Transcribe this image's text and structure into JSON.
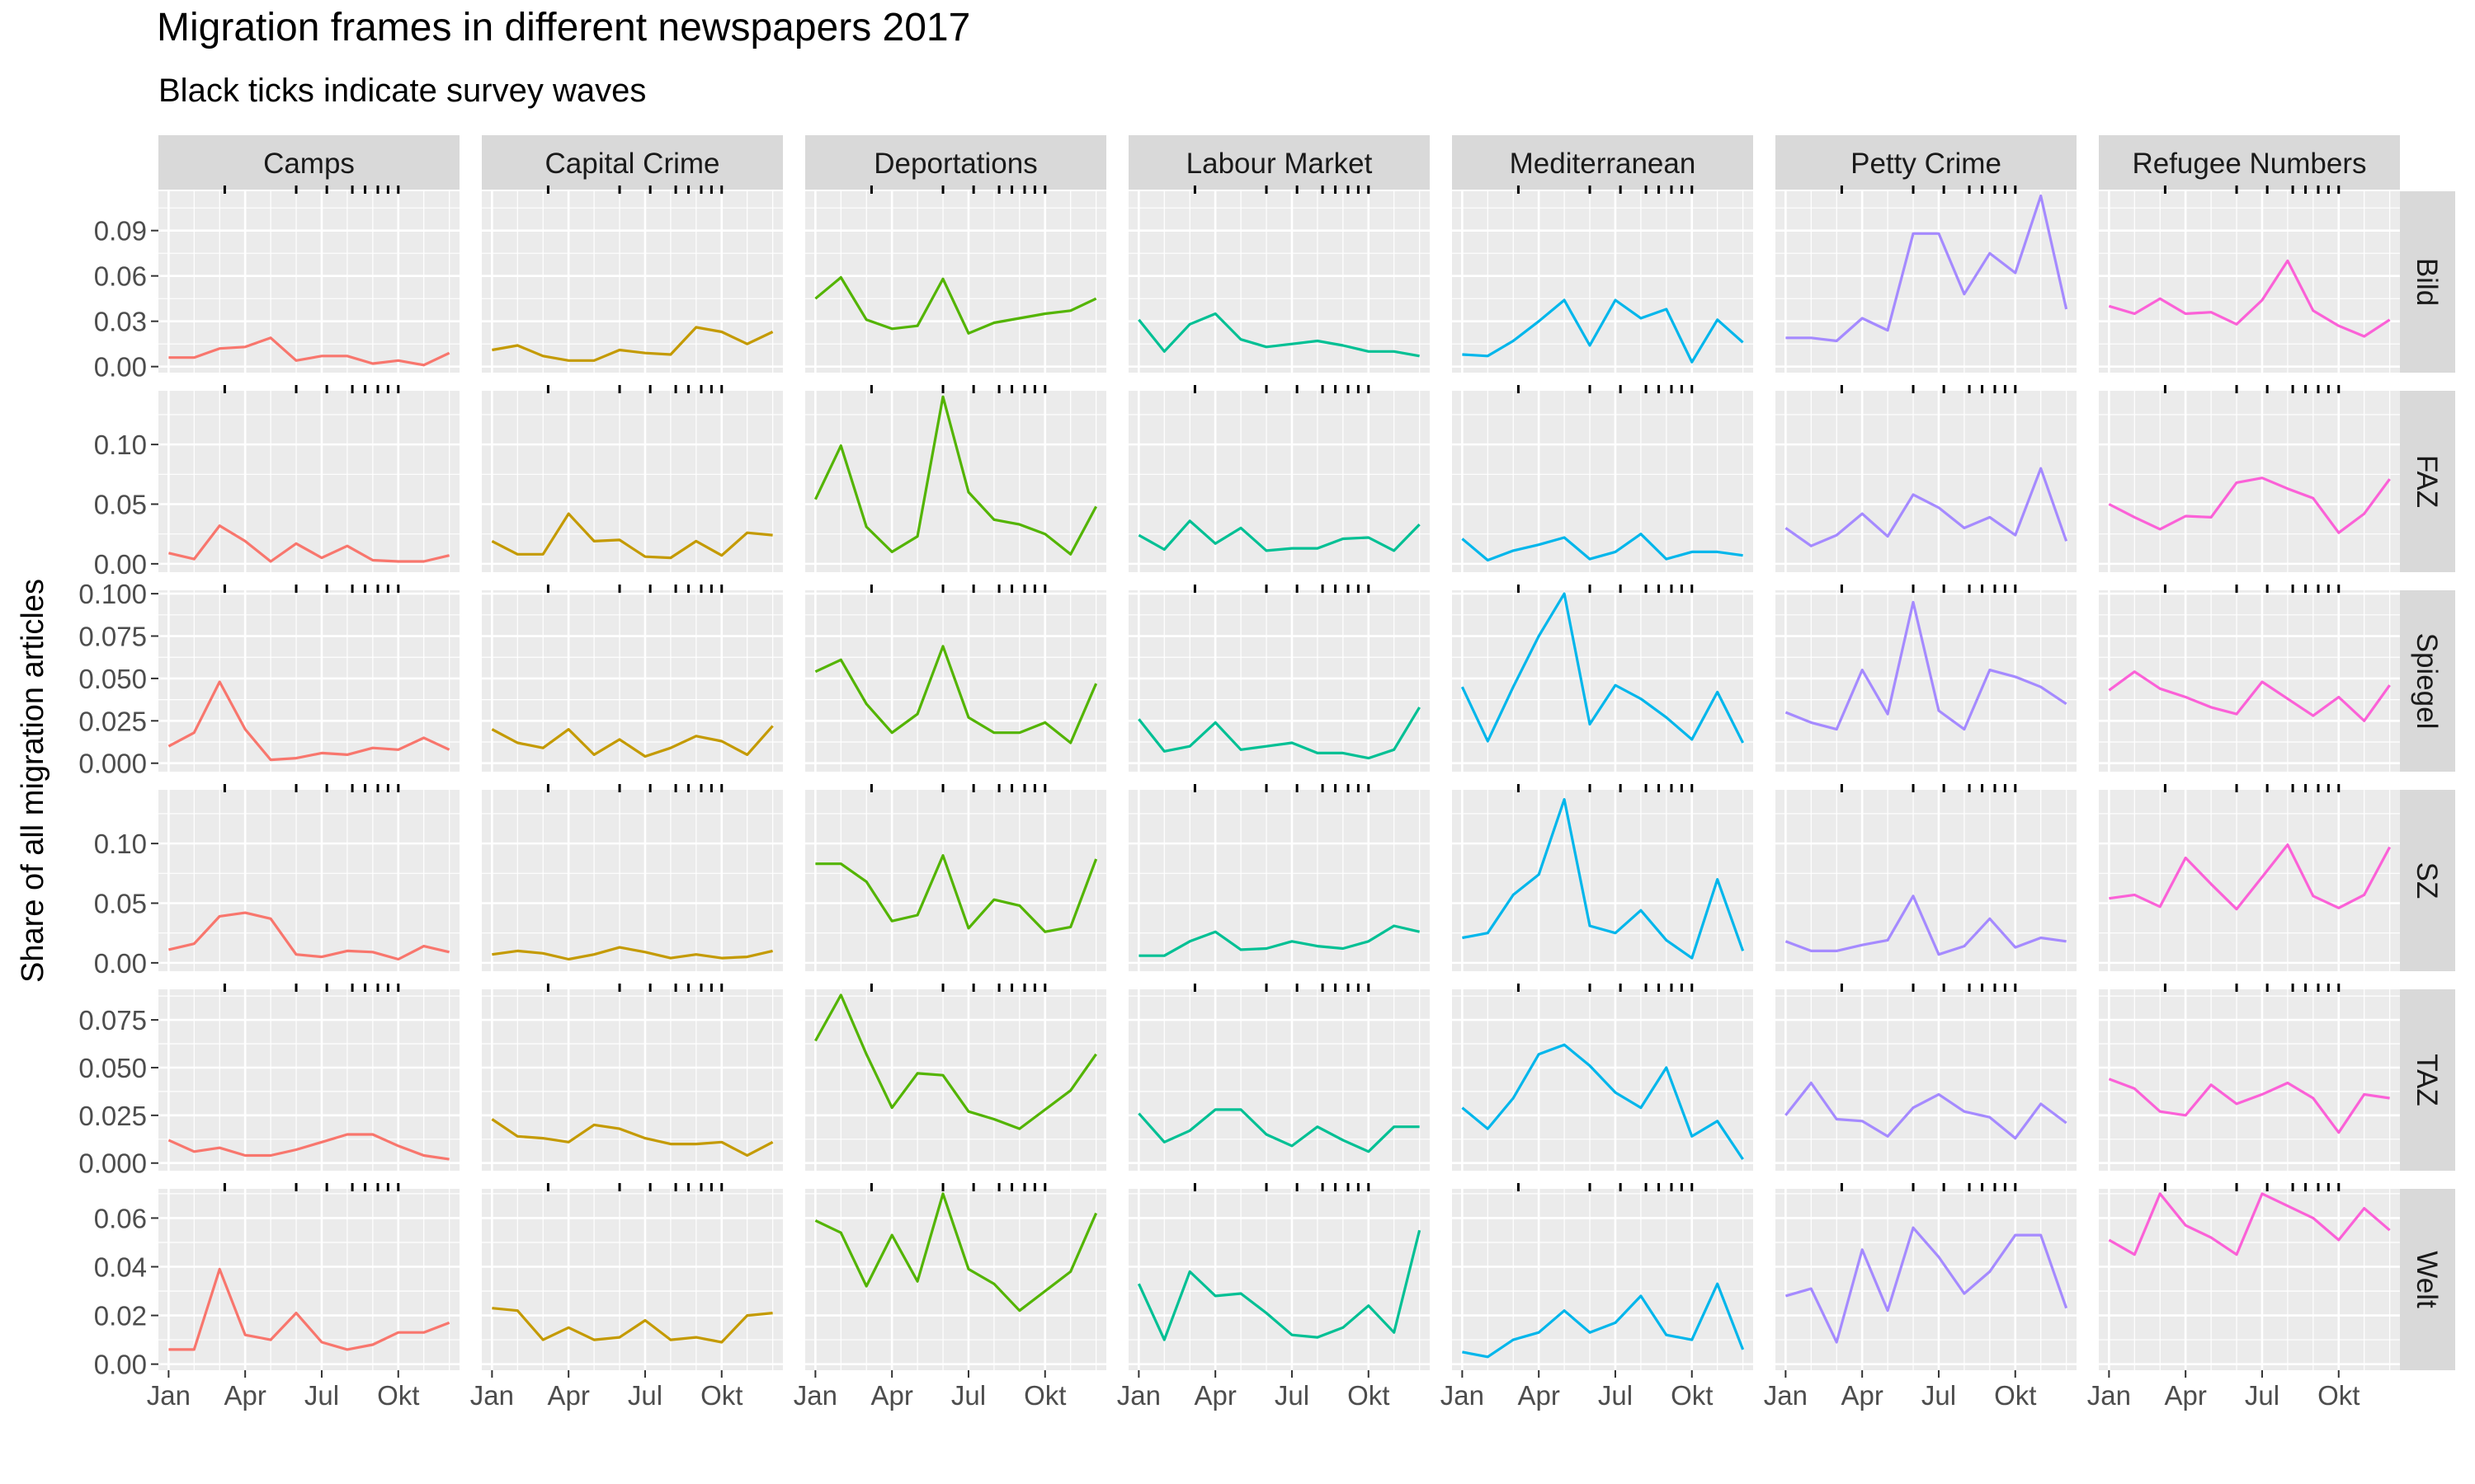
{
  "title": "Migration frames in different newspapers 2017",
  "subtitle": "Black ticks indicate survey waves",
  "chart_data": {
    "type": "line",
    "facet_columns": [
      "Camps",
      "Capital Crime",
      "Deportations",
      "Labour Market",
      "Mediterranean",
      "Petty Crime",
      "Refugee Numbers"
    ],
    "facet_rows": [
      "Bild",
      "FAZ",
      "Spiegel",
      "SZ",
      "TAZ",
      "Welt"
    ],
    "ylabel": "Share of all migration articles",
    "xlabel": "",
    "x_months": [
      1,
      2,
      3,
      4,
      5,
      6,
      7,
      8,
      9,
      10,
      11,
      12
    ],
    "x_ticks": [
      {
        "month": 1,
        "label": "Jan"
      },
      {
        "month": 4,
        "label": "Apr"
      },
      {
        "month": 7,
        "label": "Jul"
      },
      {
        "month": 10,
        "label": "Okt"
      }
    ],
    "x_range": [
      0.6,
      12.4
    ],
    "survey_wave_months": [
      3.2,
      6.0,
      7.2,
      8.2,
      8.7,
      9.2,
      9.6,
      10.0
    ],
    "colors": {
      "Camps": "#F8766D",
      "Capital Crime": "#C49A00",
      "Deportations": "#53B400",
      "Labour Market": "#00C094",
      "Mediterranean": "#00B6EB",
      "Petty Crime": "#A58AFF",
      "Refugee Numbers": "#FB61D7"
    },
    "rows": [
      {
        "name": "Bild",
        "ylim": [
          -0.004,
          0.116
        ],
        "yticks": [
          0,
          0.03,
          0.06,
          0.09
        ],
        "ytick_labels": [
          "0.00",
          "0.03",
          "0.06",
          "0.09"
        ],
        "series": {
          "Camps": [
            0.006,
            0.006,
            0.012,
            0.013,
            0.019,
            0.004,
            0.007,
            0.007,
            0.002,
            0.004,
            0.001,
            0.009
          ],
          "Capital Crime": [
            0.011,
            0.014,
            0.007,
            0.004,
            0.004,
            0.011,
            0.009,
            0.008,
            0.026,
            0.023,
            0.015,
            0.023
          ],
          "Deportations": [
            0.045,
            0.059,
            0.031,
            0.025,
            0.027,
            0.058,
            0.022,
            0.029,
            0.032,
            0.035,
            0.037,
            0.045
          ],
          "Labour Market": [
            0.031,
            0.01,
            0.028,
            0.035,
            0.018,
            0.013,
            0.015,
            0.017,
            0.014,
            0.01,
            0.01,
            0.007
          ],
          "Mediterranean": [
            0.008,
            0.007,
            0.017,
            0.03,
            0.044,
            0.014,
            0.044,
            0.032,
            0.038,
            0.003,
            0.031,
            0.016
          ],
          "Petty Crime": [
            0.019,
            0.019,
            0.017,
            0.032,
            0.024,
            0.088,
            0.088,
            0.048,
            0.075,
            0.062,
            0.113,
            0.038
          ],
          "Refugee Numbers": [
            0.04,
            0.035,
            0.045,
            0.035,
            0.036,
            0.028,
            0.044,
            0.07,
            0.037,
            0.027,
            0.02,
            0.031
          ]
        }
      },
      {
        "name": "FAZ",
        "ylim": [
          -0.007,
          0.145
        ],
        "yticks": [
          0,
          0.05,
          0.1
        ],
        "ytick_labels": [
          "0.00",
          "0.05",
          "0.10"
        ],
        "series": {
          "Camps": [
            0.009,
            0.004,
            0.032,
            0.019,
            0.002,
            0.017,
            0.005,
            0.015,
            0.003,
            0.002,
            0.002,
            0.007
          ],
          "Capital Crime": [
            0.019,
            0.008,
            0.008,
            0.042,
            0.019,
            0.02,
            0.006,
            0.005,
            0.019,
            0.007,
            0.026,
            0.024
          ],
          "Deportations": [
            0.054,
            0.099,
            0.031,
            0.01,
            0.023,
            0.14,
            0.06,
            0.037,
            0.033,
            0.025,
            0.008,
            0.048
          ],
          "Labour Market": [
            0.024,
            0.012,
            0.036,
            0.017,
            0.03,
            0.011,
            0.013,
            0.013,
            0.021,
            0.022,
            0.011,
            0.033
          ],
          "Mediterranean": [
            0.021,
            0.003,
            0.011,
            0.016,
            0.022,
            0.004,
            0.01,
            0.025,
            0.004,
            0.01,
            0.01,
            0.007
          ],
          "Petty Crime": [
            0.03,
            0.015,
            0.024,
            0.042,
            0.023,
            0.058,
            0.047,
            0.03,
            0.039,
            0.024,
            0.08,
            0.019
          ],
          "Refugee Numbers": [
            0.05,
            0.039,
            0.029,
            0.04,
            0.039,
            0.068,
            0.072,
            0.063,
            0.055,
            0.026,
            0.042,
            0.071
          ]
        }
      },
      {
        "name": "Spiegel",
        "ylim": [
          -0.005,
          0.102
        ],
        "yticks": [
          0,
          0.025,
          0.05,
          0.075,
          0.1
        ],
        "ytick_labels": [
          "0.000",
          "0.025",
          "0.050",
          "0.075",
          "0.100"
        ],
        "series": {
          "Camps": [
            0.01,
            0.018,
            0.048,
            0.02,
            0.002,
            0.003,
            0.006,
            0.005,
            0.009,
            0.008,
            0.015,
            0.008
          ],
          "Capital Crime": [
            0.02,
            0.012,
            0.009,
            0.02,
            0.005,
            0.014,
            0.004,
            0.009,
            0.016,
            0.013,
            0.005,
            0.022
          ],
          "Deportations": [
            0.054,
            0.061,
            0.035,
            0.018,
            0.029,
            0.069,
            0.027,
            0.018,
            0.018,
            0.024,
            0.012,
            0.047
          ],
          "Labour Market": [
            0.026,
            0.007,
            0.01,
            0.024,
            0.008,
            0.01,
            0.012,
            0.006,
            0.006,
            0.003,
            0.008,
            0.033
          ],
          "Mediterranean": [
            0.045,
            0.013,
            0.045,
            0.075,
            0.1,
            0.023,
            0.046,
            0.038,
            0.027,
            0.014,
            0.042,
            0.012
          ],
          "Petty Crime": [
            0.03,
            0.024,
            0.02,
            0.055,
            0.029,
            0.095,
            0.031,
            0.02,
            0.055,
            0.051,
            0.045,
            0.035
          ],
          "Refugee Numbers": [
            0.043,
            0.054,
            0.044,
            0.039,
            0.033,
            0.029,
            0.048,
            0.038,
            0.028,
            0.039,
            0.025,
            0.046
          ]
        }
      },
      {
        "name": "SZ",
        "ylim": [
          -0.007,
          0.145
        ],
        "yticks": [
          0,
          0.05,
          0.1
        ],
        "ytick_labels": [
          "0.00",
          "0.05",
          "0.10"
        ],
        "series": {
          "Camps": [
            0.011,
            0.016,
            0.039,
            0.042,
            0.037,
            0.007,
            0.005,
            0.01,
            0.009,
            0.003,
            0.014,
            0.009
          ],
          "Capital Crime": [
            0.007,
            0.01,
            0.008,
            0.003,
            0.007,
            0.013,
            0.009,
            0.004,
            0.007,
            0.004,
            0.005,
            0.01
          ],
          "Deportations": [
            0.083,
            0.083,
            0.068,
            0.035,
            0.04,
            0.09,
            0.029,
            0.053,
            0.048,
            0.026,
            0.03,
            0.087
          ],
          "Labour Market": [
            0.006,
            0.006,
            0.018,
            0.026,
            0.011,
            0.012,
            0.018,
            0.014,
            0.012,
            0.018,
            0.031,
            0.026
          ],
          "Mediterranean": [
            0.021,
            0.025,
            0.057,
            0.074,
            0.137,
            0.031,
            0.025,
            0.044,
            0.019,
            0.004,
            0.07,
            0.01
          ],
          "Petty Crime": [
            0.018,
            0.01,
            0.01,
            0.015,
            0.019,
            0.056,
            0.007,
            0.014,
            0.037,
            0.013,
            0.021,
            0.018
          ],
          "Refugee Numbers": [
            0.054,
            0.057,
            0.047,
            0.088,
            0.066,
            0.045,
            0.072,
            0.099,
            0.056,
            0.046,
            0.057,
            0.097
          ]
        }
      },
      {
        "name": "TAZ",
        "ylim": [
          -0.004,
          0.091
        ],
        "yticks": [
          0,
          0.025,
          0.05,
          0.075
        ],
        "ytick_labels": [
          "0.000",
          "0.025",
          "0.050",
          "0.075"
        ],
        "series": {
          "Camps": [
            0.012,
            0.006,
            0.008,
            0.004,
            0.004,
            0.007,
            0.011,
            0.015,
            0.015,
            0.009,
            0.004,
            0.002
          ],
          "Capital Crime": [
            0.023,
            0.014,
            0.013,
            0.011,
            0.02,
            0.018,
            0.013,
            0.01,
            0.01,
            0.011,
            0.004,
            0.011
          ],
          "Deportations": [
            0.064,
            0.088,
            0.057,
            0.029,
            0.047,
            0.046,
            0.027,
            0.023,
            0.018,
            0.028,
            0.038,
            0.057
          ],
          "Labour Market": [
            0.026,
            0.011,
            0.017,
            0.028,
            0.028,
            0.015,
            0.009,
            0.019,
            0.012,
            0.006,
            0.019,
            0.019
          ],
          "Mediterranean": [
            0.029,
            0.018,
            0.034,
            0.057,
            0.062,
            0.051,
            0.037,
            0.029,
            0.05,
            0.014,
            0.022,
            0.002
          ],
          "Petty Crime": [
            0.025,
            0.042,
            0.023,
            0.022,
            0.014,
            0.029,
            0.036,
            0.027,
            0.024,
            0.013,
            0.031,
            0.021
          ],
          "Refugee Numbers": [
            0.044,
            0.039,
            0.027,
            0.025,
            0.041,
            0.031,
            0.036,
            0.042,
            0.034,
            0.016,
            0.036,
            0.034
          ]
        }
      },
      {
        "name": "Welt",
        "ylim": [
          -0.0025,
          0.072
        ],
        "yticks": [
          0,
          0.02,
          0.04,
          0.06
        ],
        "ytick_labels": [
          "0.00",
          "0.02",
          "0.04",
          "0.06"
        ],
        "series": {
          "Camps": [
            0.006,
            0.006,
            0.039,
            0.012,
            0.01,
            0.021,
            0.009,
            0.006,
            0.008,
            0.013,
            0.013,
            0.017
          ],
          "Capital Crime": [
            0.023,
            0.022,
            0.01,
            0.015,
            0.01,
            0.011,
            0.018,
            0.01,
            0.011,
            0.009,
            0.02,
            0.021
          ],
          "Deportations": [
            0.059,
            0.054,
            0.032,
            0.053,
            0.034,
            0.07,
            0.039,
            0.033,
            0.022,
            0.03,
            0.038,
            0.062
          ],
          "Labour Market": [
            0.033,
            0.01,
            0.038,
            0.028,
            0.029,
            0.021,
            0.012,
            0.011,
            0.015,
            0.024,
            0.013,
            0.055
          ],
          "Mediterranean": [
            0.005,
            0.003,
            0.01,
            0.013,
            0.022,
            0.013,
            0.017,
            0.028,
            0.012,
            0.01,
            0.033,
            0.006
          ],
          "Petty Crime": [
            0.028,
            0.031,
            0.009,
            0.047,
            0.022,
            0.056,
            0.044,
            0.029,
            0.038,
            0.053,
            0.053,
            0.023
          ],
          "Refugee Numbers": [
            0.051,
            0.045,
            0.07,
            0.057,
            0.052,
            0.045,
            0.07,
            0.065,
            0.06,
            0.051,
            0.064,
            0.055
          ]
        }
      }
    ]
  }
}
